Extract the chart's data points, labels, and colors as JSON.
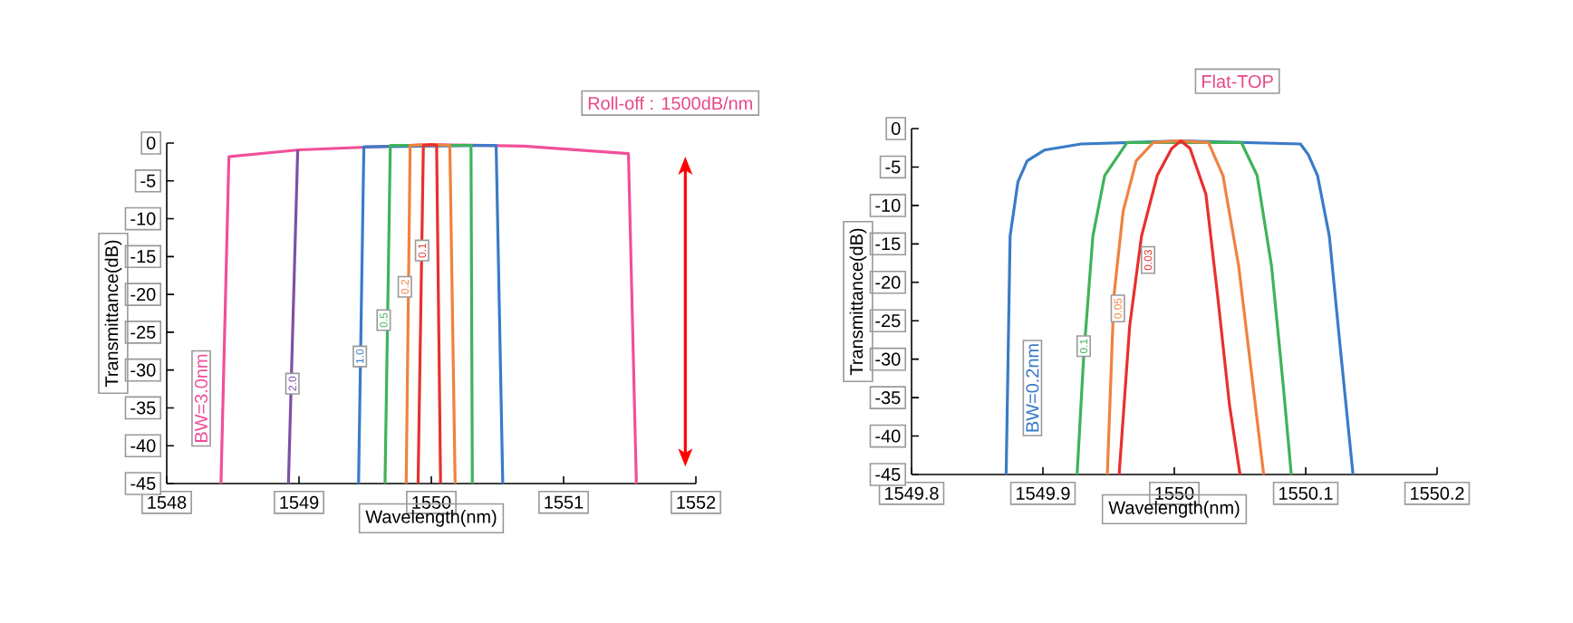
{
  "chart_data": [
    {
      "type": "line",
      "title": "Roll-off : 1500dB/nm",
      "xlabel": "Wavelength(nm)",
      "ylabel": "Transmittance(dB)",
      "xlim": [
        1548,
        1552
      ],
      "ylim": [
        -45,
        0
      ],
      "xticks": [
        1548,
        1549,
        1550,
        1551,
        1552
      ],
      "yticks": [
        0,
        -5,
        -10,
        -15,
        -20,
        -25,
        -30,
        -35,
        -40,
        -45
      ],
      "series": [
        {
          "color": "#f0509a",
          "x": [
            1548.41,
            1548.47,
            1549.0,
            1550.0,
            1550.7,
            1551.49,
            1551.55
          ],
          "values": [
            -45,
            -1.8,
            -0.9,
            -0.2,
            -0.4,
            -1.4,
            -45
          ]
        },
        {
          "color": "#7e4fa8",
          "x": [
            1548.92,
            1548.99
          ],
          "values": [
            -45,
            -0.9
          ]
        },
        {
          "color": "#3a7bc8",
          "x": [
            1549.45,
            1549.49,
            1550.0,
            1550.49,
            1550.54
          ],
          "values": [
            -45,
            -0.5,
            null,
            -0.3,
            -45
          ]
        },
        {
          "color": "#3fb35a",
          "x": [
            1549.65,
            1549.69,
            1550.0,
            1550.3,
            1550.31
          ],
          "values": [
            -45,
            -0.3,
            null,
            -0.3,
            -45
          ]
        },
        {
          "color": "#ef8240",
          "x": [
            1549.81,
            1549.84,
            1550.0,
            1550.14,
            1550.18
          ],
          "values": [
            -45,
            -0.3,
            -0.2,
            -0.3,
            -45
          ]
        },
        {
          "color": "#e8302e",
          "x": [
            1549.9,
            1549.94,
            1550.0,
            1550.04,
            1550.07
          ],
          "values": [
            -45,
            -0.3,
            -0.2,
            -0.3,
            -45
          ]
        }
      ],
      "annotations": [
        "BW=3.0nm",
        {
          "text": "2.0",
          "x": 1548.95,
          "y": -31.8
        },
        {
          "text": "1.0",
          "x": 1549.46,
          "y": -28.2
        },
        {
          "text": "0.5",
          "x": 1549.64,
          "y": -23.4
        },
        {
          "text": "0.2",
          "x": 1549.8,
          "y": -19
        },
        {
          "text": "0.1",
          "x": 1549.93,
          "y": -14.2
        }
      ]
    },
    {
      "type": "line",
      "title": "Flat-TOP",
      "xlabel": "Wavelength(nm)",
      "ylabel": "Transmittance(dB)",
      "xlim": [
        1549.8,
        1550.2
      ],
      "ylim": [
        -45,
        0
      ],
      "xticks": [
        1549.8,
        1549.9,
        1550,
        1550.1,
        1550.2
      ],
      "yticks": [
        0,
        -5,
        -10,
        -15,
        -20,
        -25,
        -30,
        -35,
        -40,
        -45
      ],
      "series": [
        {
          "color": "#3a7bc8",
          "x": [
            1549.872,
            1549.875,
            1549.881,
            1549.888,
            1549.901,
            1549.929,
            1550.007,
            1550.096,
            1550.102,
            1550.109,
            1550.118,
            1550.127,
            1550.136
          ],
          "values": [
            -45,
            -14,
            -6.9,
            -4.2,
            -2.8,
            -2.0,
            -1.6,
            -2.0,
            -3.4,
            -6.1,
            -14,
            -29.7,
            -45
          ]
        },
        {
          "color": "#3fb35a",
          "x": [
            1549.926,
            1549.931,
            1549.938,
            1549.947,
            1549.964,
            1550.051,
            1550.063,
            1550.074,
            1550.083,
            1550.089
          ],
          "values": [
            -45,
            -29.7,
            -14,
            -6.1,
            -1.8,
            -1.8,
            -6.1,
            -17.9,
            -33.6,
            -45
          ]
        },
        {
          "color": "#ef8240",
          "x": [
            1549.949,
            1549.954,
            1549.961,
            1549.971,
            1549.984,
            1550.003,
            1550.026,
            1550.037,
            1550.049,
            1550.06,
            1550.068
          ],
          "values": [
            -45,
            -21.8,
            -10.8,
            -4.2,
            -1.8,
            -1.6,
            -1.8,
            -6.1,
            -17.9,
            -33.6,
            -45
          ]
        },
        {
          "color": "#e8302e",
          "x": [
            1549.958,
            1549.966,
            1549.975,
            1549.987,
            1549.998,
            1550.005,
            1550.012,
            1550.024,
            1550.033,
            1550.042,
            1550.05
          ],
          "values": [
            -45,
            -25.7,
            -14,
            -6.1,
            -2.6,
            -1.6,
            -2.6,
            -8.5,
            -21.8,
            -36,
            -45
          ]
        }
      ],
      "annotations": [
        "BW=0.2nm",
        {
          "text": "0.1",
          "x": 1549.931,
          "y": -28.3
        },
        {
          "text": "0.05",
          "x": 1549.957,
          "y": -23.4
        },
        {
          "text": "0.03",
          "x": 1549.98,
          "y": -17.1
        }
      ]
    }
  ]
}
